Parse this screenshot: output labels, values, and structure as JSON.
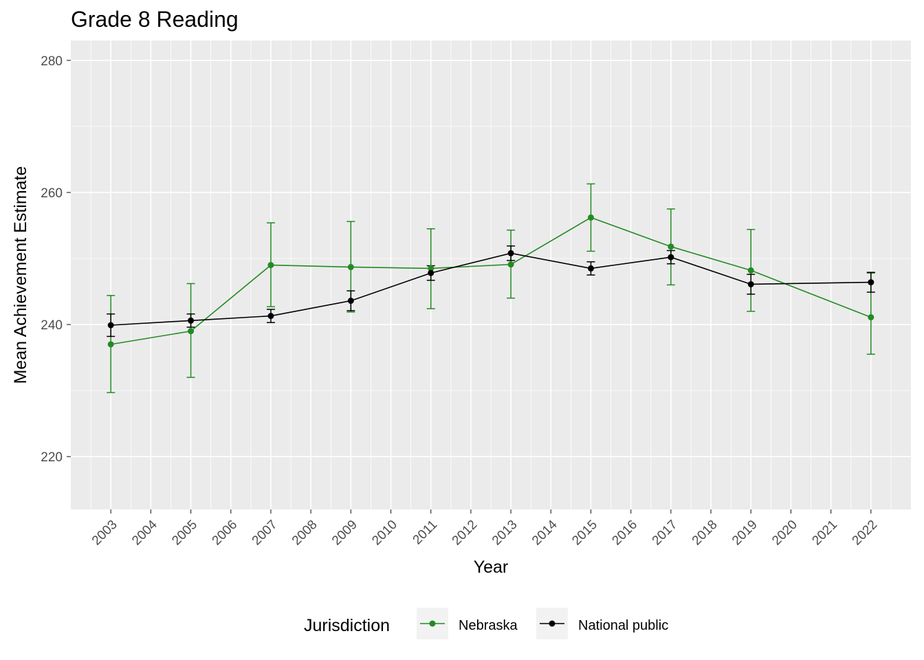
{
  "chart_data": {
    "type": "line",
    "title": "Grade 8 Reading",
    "xlabel": "Year",
    "ylabel": "Mean Achievement Estimate",
    "x_ticks": [
      "2003",
      "2004",
      "2005",
      "2006",
      "2007",
      "2008",
      "2009",
      "2010",
      "2011",
      "2012",
      "2013",
      "2014",
      "2015",
      "2016",
      "2017",
      "2018",
      "2019",
      "2020",
      "2021",
      "2022"
    ],
    "y_ticks": [
      220,
      240,
      260,
      280
    ],
    "xlim": [
      2002,
      2023
    ],
    "ylim": [
      212,
      283
    ],
    "grid": true,
    "legend": {
      "title": "Jurisdiction",
      "position": "bottom",
      "entries": [
        "Nebraska",
        "National public"
      ]
    },
    "series": [
      {
        "name": "Nebraska",
        "color": "#228b22",
        "x": [
          2003,
          2005,
          2007,
          2009,
          2011,
          2013,
          2015,
          2017,
          2019,
          2022
        ],
        "y": [
          237.0,
          239.0,
          249.0,
          248.7,
          248.5,
          249.1,
          256.2,
          251.8,
          248.2,
          241.1
        ],
        "lower": [
          229.7,
          232.0,
          242.7,
          241.9,
          242.4,
          244.0,
          251.1,
          246.0,
          242.0,
          235.5
        ],
        "upper": [
          244.4,
          246.2,
          255.4,
          255.6,
          254.5,
          254.3,
          261.3,
          257.5,
          254.4,
          247.8
        ]
      },
      {
        "name": "National public",
        "color": "#000000",
        "x": [
          2003,
          2005,
          2007,
          2009,
          2011,
          2013,
          2015,
          2017,
          2019,
          2022
        ],
        "y": [
          239.9,
          240.6,
          241.3,
          243.6,
          247.8,
          250.8,
          248.5,
          250.2,
          246.1,
          246.4
        ],
        "lower": [
          238.2,
          239.6,
          240.3,
          242.1,
          246.7,
          249.7,
          247.5,
          249.2,
          244.6,
          244.9
        ],
        "upper": [
          241.6,
          241.6,
          242.3,
          245.1,
          248.9,
          251.9,
          249.5,
          251.2,
          247.6,
          247.9
        ]
      }
    ]
  }
}
